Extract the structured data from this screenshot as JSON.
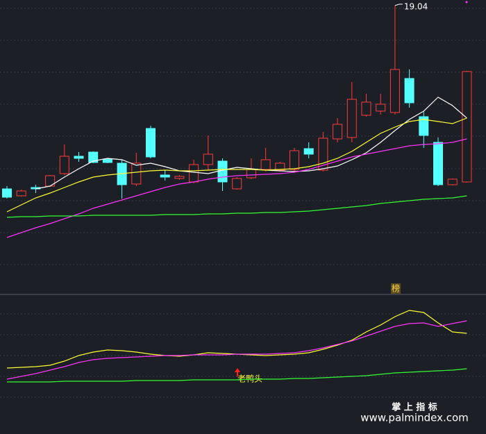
{
  "chart_data": [
    {
      "type": "candlestick",
      "ylim": [
        10.8,
        19.2
      ],
      "up_color": "#ff3b3b",
      "down_color": "#54ffff",
      "candles": {
        "open": [
          13.76,
          13.56,
          13.8,
          13.84,
          14.2,
          14.7,
          14.82,
          14.62,
          14.5,
          13.9,
          15.5,
          14.16,
          14.06,
          13.96,
          14.46,
          14.56,
          13.76,
          14.08,
          14.32,
          14.3,
          14.32,
          14.92,
          14.3,
          15.2,
          15.24,
          15.88,
          16.0,
          15.96,
          16.94,
          15.84,
          15.1,
          13.88,
          13.96
        ],
        "high": [
          13.84,
          13.74,
          13.88,
          14.16,
          15.04,
          14.82,
          14.84,
          14.64,
          14.6,
          14.8,
          15.58,
          14.3,
          14.16,
          14.6,
          15.3,
          14.64,
          14.1,
          14.64,
          14.94,
          14.54,
          14.94,
          15.1,
          15.4,
          15.8,
          16.84,
          16.5,
          16.5,
          19.04,
          17.2,
          16.0,
          15.24,
          14.06,
          17.16
        ],
        "low": [
          13.48,
          13.54,
          13.64,
          13.82,
          14.16,
          14.54,
          14.5,
          14.5,
          13.48,
          13.84,
          14.64,
          14.0,
          14.02,
          13.92,
          14.3,
          13.7,
          13.74,
          14.04,
          14.26,
          14.26,
          14.24,
          14.64,
          14.26,
          15.1,
          15.1,
          15.84,
          15.9,
          15.9,
          16.1,
          14.94,
          13.84,
          13.86,
          13.94
        ],
        "close": [
          13.52,
          13.7,
          13.76,
          14.14,
          14.7,
          14.64,
          14.52,
          14.52,
          13.88,
          14.5,
          14.68,
          14.1,
          14.12,
          14.46,
          14.76,
          13.96,
          14.06,
          14.32,
          14.6,
          14.5,
          14.86,
          14.76,
          15.22,
          15.62,
          16.34,
          16.26,
          16.2,
          17.2,
          16.24,
          15.3,
          13.88,
          14.04,
          17.14
        ],
        "high_labels": [
          null,
          null,
          null,
          null,
          null,
          null,
          null,
          null,
          null,
          null,
          null,
          null,
          null,
          null,
          null,
          null,
          null,
          null,
          null,
          null,
          null,
          null,
          null,
          null,
          null,
          null,
          null,
          "19.04",
          null,
          null,
          null,
          null,
          null
        ]
      },
      "series": [
        {
          "color": "#ffffff",
          "values": [
            null,
            null,
            13.76,
            13.84,
            14.1,
            14.34,
            14.56,
            14.64,
            14.6,
            14.44,
            14.5,
            14.4,
            14.28,
            14.24,
            14.2,
            14.3,
            14.38,
            14.34,
            14.3,
            14.28,
            14.26,
            14.28,
            14.34,
            14.42,
            14.6,
            14.8,
            15.1,
            15.44,
            15.76,
            16.0,
            16.4,
            16.16,
            15.8
          ]
        },
        {
          "color": "#ffff33",
          "values": [
            13.1,
            13.3,
            13.5,
            13.64,
            13.8,
            13.96,
            14.1,
            14.16,
            14.2,
            14.24,
            14.28,
            14.3,
            14.28,
            14.28,
            14.3,
            14.32,
            14.32,
            14.32,
            14.3,
            14.32,
            14.34,
            14.4,
            14.5,
            14.64,
            14.84,
            15.1,
            15.36,
            15.54,
            15.7,
            15.76,
            15.7,
            15.64,
            15.8
          ]
        },
        {
          "color": "#ff33ff",
          "values": [
            12.36,
            12.5,
            12.64,
            12.76,
            12.9,
            13.04,
            13.2,
            13.32,
            13.44,
            13.56,
            13.68,
            13.8,
            13.9,
            13.96,
            14.04,
            14.1,
            14.14,
            14.16,
            14.18,
            14.2,
            14.24,
            14.32,
            14.44,
            14.56,
            14.68,
            14.76,
            14.84,
            14.92,
            15.0,
            15.04,
            15.06,
            15.1,
            15.2
          ]
        },
        {
          "color": "#33ff33",
          "values": [
            12.94,
            12.96,
            12.96,
            12.98,
            12.98,
            12.98,
            13.0,
            13.0,
            13.0,
            13.0,
            13.0,
            13.02,
            13.02,
            13.02,
            13.04,
            13.04,
            13.06,
            13.06,
            13.08,
            13.08,
            13.1,
            13.12,
            13.16,
            13.2,
            13.24,
            13.28,
            13.34,
            13.38,
            13.42,
            13.46,
            13.48,
            13.5,
            13.56
          ]
        }
      ],
      "signal_label": "榜"
    },
    {
      "type": "line",
      "ylim": [
        0,
        100
      ],
      "annotation": "老鸭头",
      "series": [
        {
          "color": "#ffff33",
          "values": [
            45,
            45.5,
            46,
            47,
            50,
            54,
            56.5,
            58,
            57.5,
            56.5,
            55,
            54,
            53.5,
            54.5,
            56,
            55.5,
            55,
            54.5,
            54,
            54.5,
            55,
            56,
            58.5,
            61.5,
            65,
            71,
            76,
            82,
            86.5,
            85,
            77.5,
            71,
            70
          ]
        },
        {
          "color": "#ff33ff",
          "values": [
            37,
            39,
            41,
            43.5,
            46,
            49,
            51,
            52,
            52.5,
            53,
            53.5,
            54,
            54,
            54.5,
            54.5,
            54.5,
            55,
            55,
            55,
            55.5,
            56,
            57.5,
            59.5,
            62,
            64.5,
            68,
            71.5,
            75,
            77,
            77.5,
            75,
            77,
            79
          ]
        },
        {
          "color": "#33ff33",
          "values": [
            35,
            35,
            35,
            35,
            35.5,
            35.5,
            35.5,
            35.5,
            35.5,
            36,
            36,
            36,
            36,
            36.5,
            36.5,
            36.5,
            36.5,
            37,
            37,
            37,
            37.5,
            37.5,
            38,
            38.5,
            39,
            39.5,
            40.5,
            41.5,
            42,
            42.5,
            43,
            43.5,
            44.5
          ]
        }
      ]
    }
  ],
  "watermark": {
    "brand": "掌 上 指 标",
    "url": "www.palmindex.com"
  }
}
